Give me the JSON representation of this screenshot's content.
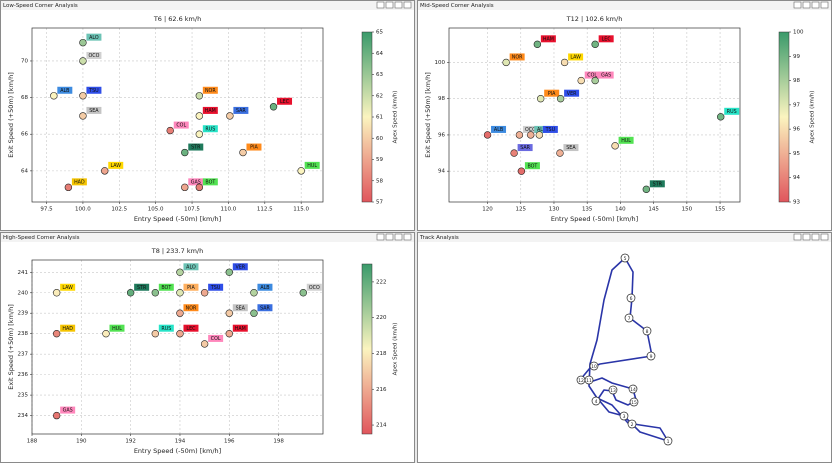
{
  "windows": [
    {
      "title": "Low-Speed Corner Analysis"
    },
    {
      "title": "Mid-Speed Corner Analysis"
    },
    {
      "title": "High-Speed Corner Analysis"
    },
    {
      "title": "Track Analysis"
    }
  ],
  "chart_data": [
    {
      "type": "scatter",
      "title": "T6 | 62.6 km/h",
      "x_label": "Entry Speed (-50m) [km/h]",
      "y_label": "Exit Speed (+50m) [km/h]",
      "colorbar_label": "Apex Speed (km/h)",
      "grid": true,
      "x": [
        100,
        100,
        98,
        100,
        100,
        108,
        108,
        110.1,
        113.1,
        106,
        108,
        107,
        111,
        115,
        101.5,
        99,
        107,
        108
      ],
      "values": [
        71,
        70,
        68.1,
        68.1,
        67,
        68.1,
        67,
        67,
        67.5,
        66.2,
        66,
        65,
        65,
        64,
        64,
        63.1,
        63.1,
        63.1
      ],
      "color_values": [
        63,
        62,
        61,
        60,
        60,
        62,
        61,
        60,
        64,
        58,
        61,
        64,
        60,
        61,
        59,
        58,
        59,
        58
      ],
      "point_labels": [
        "ALO",
        "OCO",
        "ALB",
        "TSU",
        "SEA",
        "NOR",
        "HAM",
        "SAR",
        "LEC",
        "COL",
        "RUS",
        "STR",
        "PIA",
        "HUL",
        "LAW",
        "HAD",
        "GAS",
        "BOT"
      ],
      "label_colors": [
        "#6cc3b5",
        "#d0d0d0",
        "#3d8be0",
        "#2f4ee8",
        "#c4c4c4",
        "#ff8a1a",
        "#e8102d",
        "#3a6fe0",
        "#e8102d",
        "#ff87bc",
        "#27e4c8",
        "#1f7a5c",
        "#ff8a1a",
        "#52e252",
        "#ffd800",
        "#f5c400",
        "#ff87bc",
        "#52e252"
      ],
      "xlim": [
        96.5,
        116.5
      ],
      "xticks": [
        97.5,
        {
          "value": 100,
          "label": "100.0"
        },
        102.5,
        {
          "value": 105,
          "label": "105.0"
        },
        107.5,
        {
          "value": 110,
          "label": "110.0"
        },
        112.5,
        {
          "value": 115,
          "label": "115.0"
        }
      ],
      "ylim": [
        62.3,
        71.8
      ],
      "yticks": [
        64,
        66,
        68,
        70
      ],
      "clim": [
        57,
        65
      ],
      "cticks": [
        57,
        58,
        59,
        60,
        61,
        62,
        63,
        64,
        65
      ]
    },
    {
      "type": "scatter",
      "title": "T12 | 102.6 km/h",
      "x_label": "Entry Speed (-50m) [km/h]",
      "y_label": "Exit Speed (+50m) [km/h]",
      "colorbar_label": "Apex Speed (km/h)",
      "grid": true,
      "x": [
        127.5,
        136.2,
        122.8,
        131.6,
        134.1,
        136.2,
        128,
        131,
        155.1,
        120,
        124.8,
        126.5,
        127.8,
        139.2,
        130.9,
        124,
        125.1,
        143.9
      ],
      "values": [
        101,
        101,
        100,
        100,
        99,
        99,
        98,
        98,
        97,
        96,
        96,
        96,
        96,
        95.4,
        95,
        95,
        94,
        93
      ],
      "color_values": [
        99,
        99,
        97,
        96,
        96,
        98,
        97,
        98,
        99,
        93.5,
        95,
        95,
        96,
        96,
        95,
        94,
        93.5,
        99
      ],
      "point_labels": [
        "HAM",
        "LEC",
        "NOR",
        "LAW",
        "COL",
        "GAS",
        "PIA",
        "VER",
        "RUS",
        "ALB",
        "OCO",
        "ALO",
        "TSU",
        "HUL",
        "SEA",
        "SAR",
        "BOT",
        "STR"
      ],
      "label_colors": [
        "#e8102d",
        "#e8102d",
        "#ff8a1a",
        "#ffd800",
        "#ff87bc",
        "#ff87bc",
        "#ff8a1a",
        "#2f4ee8",
        "#27e4c8",
        "#3d8be0",
        "#d0d0d0",
        "#6cc3b5",
        "#2f4ee8",
        "#52e252",
        "#c4c4c4",
        "#6a6ae0",
        "#52e252",
        "#1f7a5c"
      ],
      "xlim": [
        114.2,
        158
      ],
      "xticks": [
        120,
        125,
        130,
        135,
        140,
        145,
        150,
        155
      ],
      "ylim": [
        92.3,
        101.9
      ],
      "yticks": [
        94,
        96,
        98,
        100
      ],
      "clim": [
        93,
        100
      ],
      "cticks": [
        93,
        94,
        95,
        96,
        97,
        98,
        99,
        100
      ]
    },
    {
      "type": "scatter",
      "title": "T8 | 233.7 km/h",
      "x_label": "Entry Speed (-50m) [km/h]",
      "y_label": "Exit Speed (+50m) [km/h]",
      "colorbar_label": "Apex Speed (km/h)",
      "grid": true,
      "x": [
        194,
        196,
        189,
        192,
        193,
        194,
        197,
        199,
        195,
        194,
        196,
        197,
        189,
        191,
        193,
        194,
        196,
        195,
        189
      ],
      "values": [
        241,
        241,
        240,
        240,
        240,
        240,
        240,
        240,
        240,
        239,
        239,
        239,
        238,
        238,
        238,
        238,
        238,
        237.5,
        234
      ],
      "color_values": [
        220,
        221,
        218,
        222,
        221,
        219,
        220,
        221,
        216,
        216,
        217,
        221,
        215,
        218,
        217,
        216,
        216,
        217,
        214.5
      ],
      "point_labels": [
        "ALO",
        "VER",
        "LAW",
        "STR",
        "BOT",
        "PIA",
        "ALB",
        "OCO",
        "TSU",
        "NOR",
        "SEA",
        "SAR",
        "HAD",
        "HUL",
        "RUS",
        "LEC",
        "HAM",
        "COL",
        "GAS"
      ],
      "label_colors": [
        "#6cc3b5",
        "#2f4ee8",
        "#ffd800",
        "#1f7a5c",
        "#52e252",
        "#ffb060",
        "#3d8be0",
        "#d0d0d0",
        "#2f4ee8",
        "#ff8a1a",
        "#c4c4c4",
        "#3a6fe0",
        "#f5c400",
        "#52e252",
        "#27e4c8",
        "#e8102d",
        "#e8102d",
        "#ff87bc",
        "#ff87bc"
      ],
      "xlim": [
        188,
        199.8
      ],
      "xticks": [
        188,
        190,
        192,
        194,
        196,
        198
      ],
      "ylim": [
        233.1,
        241.6
      ],
      "yticks": [
        234,
        235,
        236,
        237,
        238,
        239,
        240,
        241
      ],
      "clim": [
        213.5,
        223
      ],
      "cticks": [
        214,
        216,
        218,
        220,
        222
      ]
    }
  ],
  "track": {
    "corners": [
      5,
      6,
      7,
      8,
      9,
      10,
      12,
      11,
      14,
      13,
      4,
      15,
      3,
      2,
      1
    ]
  }
}
